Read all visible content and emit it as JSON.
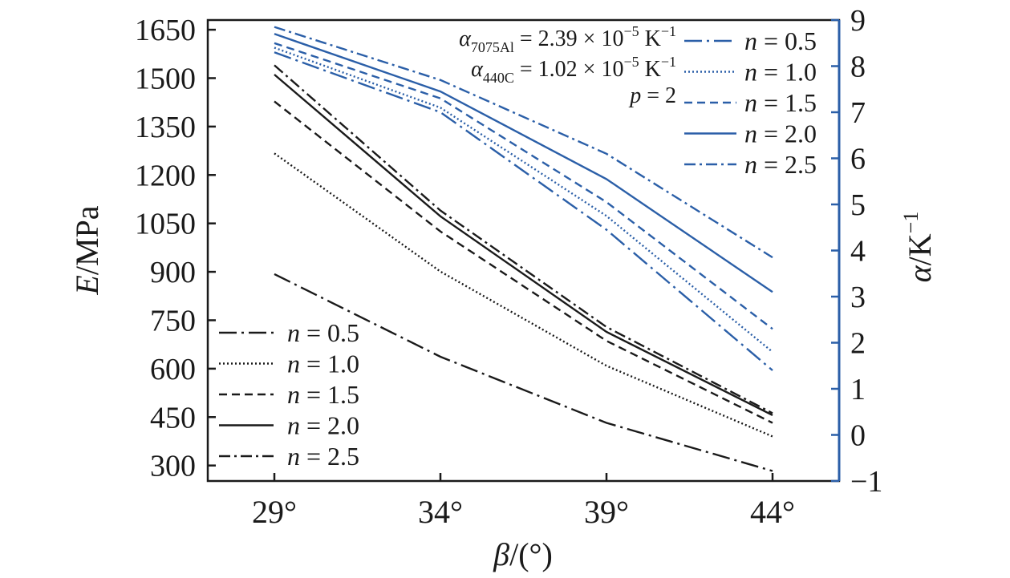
{
  "chart_data": {
    "type": "line",
    "categories": [
      "29°",
      "34°",
      "39°",
      "44°"
    ],
    "x_values": [
      29,
      34,
      39,
      44
    ],
    "xlabel": {
      "symbol": "β",
      "unit": "/(°)"
    },
    "ylabel_left": {
      "symbol": "E",
      "unit": "/MPa"
    },
    "ylabel_right": {
      "symbol": "α",
      "unit": "/K",
      "sup": "−1"
    },
    "ylim_left": [
      252,
      1680
    ],
    "ylim_right": [
      -1,
      9
    ],
    "yticks_left": [
      300,
      450,
      600,
      750,
      900,
      1050,
      1200,
      1350,
      1500,
      1650
    ],
    "yticks_right": [
      -1,
      0,
      1,
      2,
      3,
      4,
      5,
      6,
      7,
      8,
      9
    ],
    "ytick_labels_left": [
      "300",
      "450",
      "600",
      "750",
      "900",
      "1050",
      "1200",
      "1350",
      "1500",
      "1650"
    ],
    "ytick_labels_right": [
      "−1",
      "0",
      "1",
      "2",
      "3",
      "4",
      "5",
      "6",
      "7",
      "8",
      "9"
    ],
    "colors": {
      "left_series": "#1a1a1a",
      "right_series": "#2b5fa8",
      "right_axis": "#2b5fa8",
      "axis": "#1a1a1a"
    },
    "series_left": [
      {
        "name": "n = 0.5",
        "dash": "dashdot",
        "values": [
          893,
          637,
          432,
          283
        ]
      },
      {
        "name": "n = 1.0",
        "dash": "dotted",
        "values": [
          1267,
          901,
          609,
          390
        ]
      },
      {
        "name": "n = 1.5",
        "dash": "dashed",
        "values": [
          1428,
          1025,
          686,
          432
        ]
      },
      {
        "name": "n = 2.0",
        "dash": "solid",
        "values": [
          1511,
          1072,
          714,
          456
        ]
      },
      {
        "name": "n = 2.5",
        "dash": "dashdotdense",
        "values": [
          1540,
          1090,
          729,
          462
        ]
      }
    ],
    "series_right": [
      {
        "name": "n = 0.5",
        "dash": "dashdot",
        "values": [
          8.3,
          7.0,
          4.45,
          1.4
        ]
      },
      {
        "name": "n = 1.0",
        "dash": "dotted",
        "values": [
          8.4,
          7.1,
          4.75,
          1.8
        ]
      },
      {
        "name": "n = 1.5",
        "dash": "dashed",
        "values": [
          8.5,
          7.3,
          5.05,
          2.3
        ]
      },
      {
        "name": "n = 2.0",
        "dash": "solid",
        "values": [
          8.7,
          7.45,
          5.55,
          3.1
        ]
      },
      {
        "name": "n = 2.5",
        "dash": "dashdotdense",
        "values": [
          8.85,
          7.7,
          6.1,
          3.85
        ]
      }
    ],
    "annotations": [
      {
        "sym": "α",
        "sub": "7075Al",
        "text": " = 2.39 × 10",
        "sup": "−5",
        "unit": " K",
        "unit_sup": "−1"
      },
      {
        "sym": "α",
        "sub": "440C",
        "text": " = 1.02 × 10",
        "sup": "−5",
        "unit": " K",
        "unit_sup": "−1"
      },
      {
        "sym": "p",
        "text": " = 2"
      }
    ],
    "legend_left_position": "bottom-left",
    "legend_right_position": "top-right"
  }
}
